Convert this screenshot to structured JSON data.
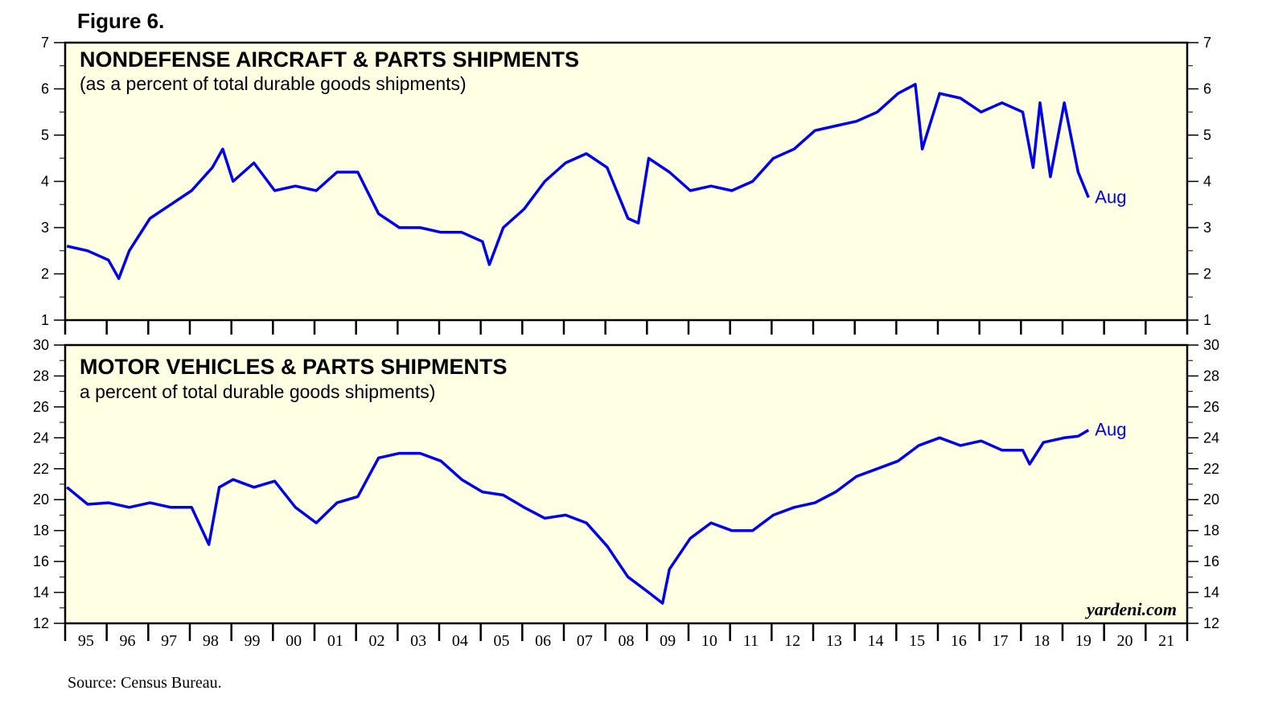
{
  "figure_title": "Figure 6.",
  "source": "Source: Census Bureau.",
  "credit": "yardeni.com",
  "colors": {
    "plot_background": "#ffffe4",
    "series_line": "#0000ee",
    "frame": "#000000"
  },
  "x_axis": {
    "tick_labels": [
      "95",
      "96",
      "97",
      "98",
      "99",
      "00",
      "01",
      "02",
      "03",
      "04",
      "05",
      "06",
      "07",
      "08",
      "09",
      "10",
      "11",
      "12",
      "13",
      "14",
      "15",
      "16",
      "17",
      "18",
      "19",
      "20",
      "21"
    ]
  },
  "chart_data": [
    {
      "type": "line",
      "title": "NONDEFENSE AIRCRAFT & PARTS SHIPMENTS",
      "subtitle": "(as a percent of total durable goods shipments)",
      "ylim": [
        1,
        7
      ],
      "y_ticks": [
        "1",
        "2",
        "3",
        "4",
        "5",
        "6",
        "7"
      ],
      "end_label": "Aug",
      "grid": false,
      "series": [
        {
          "x": [
            "1995-01",
            "1995-07",
            "1996-01",
            "1996-04",
            "1996-07",
            "1997-01",
            "1997-07",
            "1998-01",
            "1998-07",
            "1998-10",
            "1999-01",
            "1999-07",
            "2000-01",
            "2000-07",
            "2001-01",
            "2001-07",
            "2002-01",
            "2002-07",
            "2003-01",
            "2003-07",
            "2004-01",
            "2004-07",
            "2005-01",
            "2005-03",
            "2005-07",
            "2006-01",
            "2006-07",
            "2007-01",
            "2007-07",
            "2008-01",
            "2008-07",
            "2008-10",
            "2009-01",
            "2009-07",
            "2010-01",
            "2010-07",
            "2011-01",
            "2011-07",
            "2012-01",
            "2012-07",
            "2013-01",
            "2013-07",
            "2014-01",
            "2014-07",
            "2015-01",
            "2015-06",
            "2015-08",
            "2016-01",
            "2016-07",
            "2017-01",
            "2017-07",
            "2018-01",
            "2018-04",
            "2018-06",
            "2018-09",
            "2019-01",
            "2019-05",
            "2019-08"
          ],
          "y": [
            2.6,
            2.5,
            2.3,
            1.9,
            2.5,
            3.2,
            3.5,
            3.8,
            4.3,
            4.7,
            4.0,
            4.4,
            3.8,
            3.9,
            3.8,
            4.2,
            4.2,
            3.3,
            3.0,
            3.0,
            2.9,
            2.9,
            2.7,
            2.2,
            3.0,
            3.4,
            4.0,
            4.4,
            4.6,
            4.3,
            3.2,
            3.1,
            4.5,
            4.2,
            3.8,
            3.9,
            3.8,
            4.0,
            4.5,
            4.7,
            5.1,
            5.2,
            5.3,
            5.5,
            5.9,
            6.1,
            4.7,
            5.9,
            5.8,
            5.5,
            5.7,
            5.5,
            4.3,
            5.7,
            4.1,
            5.7,
            4.2,
            3.65
          ]
        }
      ]
    },
    {
      "type": "line",
      "title": "MOTOR VEHICLES & PARTS SHIPMENTS",
      "subtitle": "a percent of total durable goods shipments)",
      "ylim": [
        12,
        30
      ],
      "y_ticks": [
        "12",
        "14",
        "16",
        "18",
        "20",
        "22",
        "24",
        "26",
        "28",
        "30"
      ],
      "end_label": "Aug",
      "grid": false,
      "series": [
        {
          "x": [
            "1995-01",
            "1995-07",
            "1996-01",
            "1996-07",
            "1997-01",
            "1997-07",
            "1998-01",
            "1998-06",
            "1998-09",
            "1999-01",
            "1999-07",
            "2000-01",
            "2000-07",
            "2001-01",
            "2001-07",
            "2002-01",
            "2002-07",
            "2003-01",
            "2003-07",
            "2004-01",
            "2004-07",
            "2005-01",
            "2005-07",
            "2006-01",
            "2006-07",
            "2007-01",
            "2007-07",
            "2008-01",
            "2008-07",
            "2009-01",
            "2009-05",
            "2009-07",
            "2010-01",
            "2010-07",
            "2011-01",
            "2011-07",
            "2012-01",
            "2012-07",
            "2013-01",
            "2013-07",
            "2014-01",
            "2014-07",
            "2015-01",
            "2015-07",
            "2016-01",
            "2016-07",
            "2017-01",
            "2017-07",
            "2018-01",
            "2018-03",
            "2018-07",
            "2019-01",
            "2019-05",
            "2019-08"
          ],
          "y": [
            20.8,
            19.7,
            19.8,
            19.5,
            19.8,
            19.5,
            19.5,
            17.1,
            20.8,
            21.3,
            20.8,
            21.2,
            19.5,
            18.5,
            19.8,
            20.2,
            22.7,
            23.0,
            23.0,
            22.5,
            21.3,
            20.5,
            20.3,
            19.5,
            18.8,
            19.0,
            18.5,
            17.0,
            15.0,
            14.0,
            13.3,
            15.5,
            17.5,
            18.5,
            18.0,
            18.0,
            19.0,
            19.5,
            19.8,
            20.5,
            21.5,
            22.0,
            22.5,
            23.5,
            24.0,
            23.5,
            23.8,
            23.2,
            23.2,
            22.3,
            23.7,
            24.0,
            24.1,
            24.5
          ]
        }
      ]
    }
  ]
}
